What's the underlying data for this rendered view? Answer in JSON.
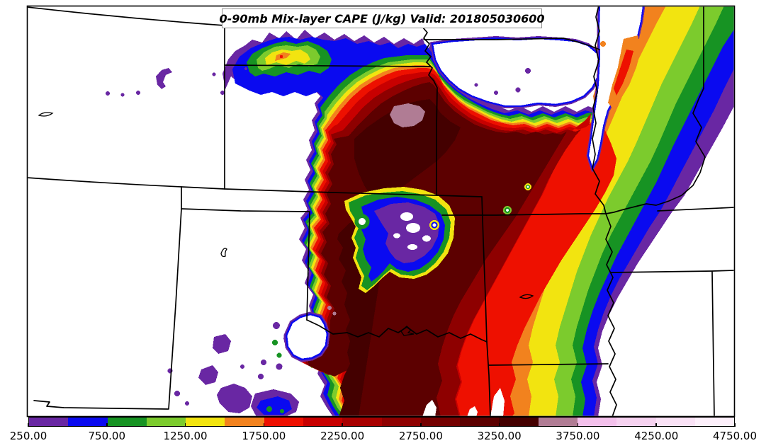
{
  "title": {
    "text": "0-90mb Mix-layer CAPE (J/kg) Valid: 201805030600"
  },
  "colorbar": {
    "tick_labels": [
      "250.00",
      "750.00",
      "1250.00",
      "1750.00",
      "2250.00",
      "2750.00",
      "3250.00",
      "3750.00",
      "4250.00",
      "4750.00"
    ],
    "levels": [
      250,
      500,
      750,
      1000,
      1250,
      1500,
      1750,
      2000,
      2250,
      2500,
      2750,
      3000,
      3250,
      3500,
      3750,
      4000,
      4250,
      4500,
      4750
    ],
    "colors": [
      "#6927A3",
      "#0A0AF0",
      "#179323",
      "#7CCB2D",
      "#F2E410",
      "#F2821E",
      "#EE1000",
      "#C80000",
      "#A80000",
      "#8E0000",
      "#740000",
      "#5C0000",
      "#440000",
      "#B07C94",
      "#F3C0EB",
      "#F6D2F0",
      "#FAE2F6",
      "#FDF0FB"
    ],
    "units": "J/kg"
  },
  "map": {
    "frame_color": "#000000",
    "border_color": "#000000",
    "background": "#ffffff"
  }
}
